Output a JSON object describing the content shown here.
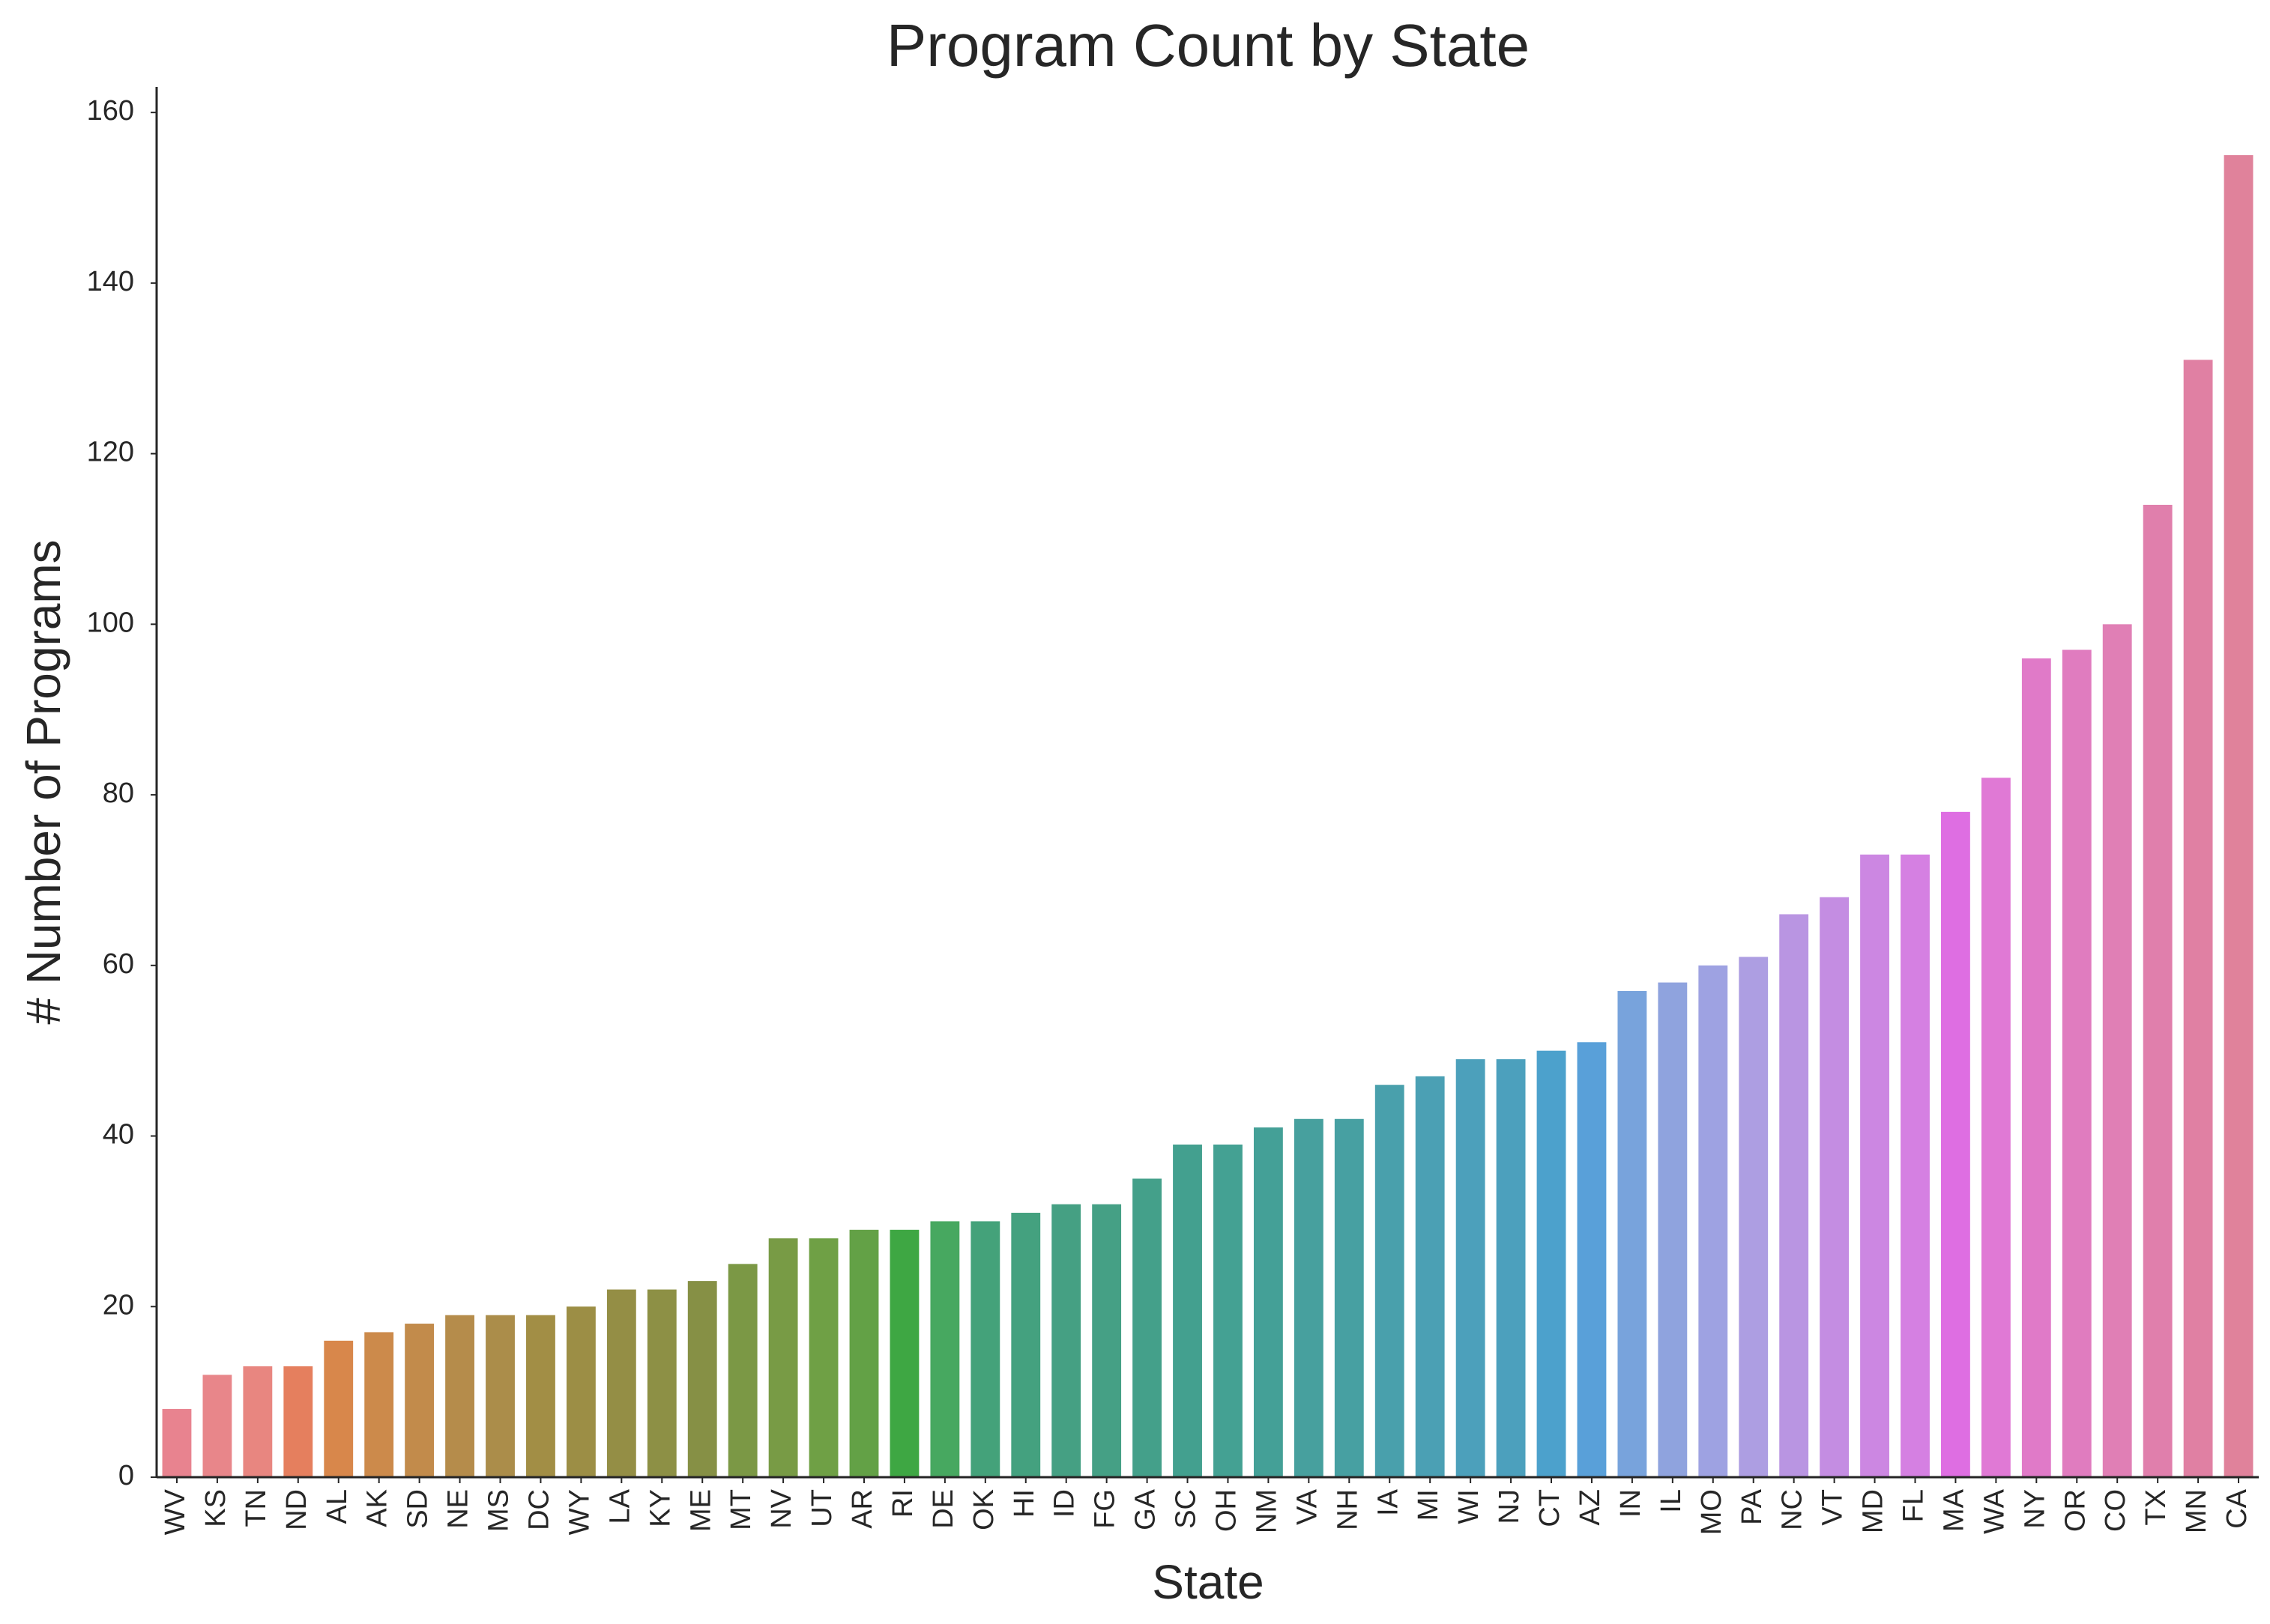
{
  "chart_data": {
    "type": "bar",
    "title": "Program Count by State",
    "xlabel": "State",
    "ylabel": "# Number of Programs",
    "ylim": [
      0,
      163
    ],
    "yticks": [
      0,
      20,
      40,
      60,
      80,
      100,
      120,
      140,
      160
    ],
    "grid": false,
    "categories": [
      "WV",
      "KS",
      "TN",
      "ND",
      "AL",
      "AK",
      "SD",
      "NE",
      "MS",
      "DC",
      "WY",
      "LA",
      "KY",
      "ME",
      "MT",
      "NV",
      "UT",
      "AR",
      "RI",
      "DE",
      "OK",
      "HI",
      "ID",
      "FG",
      "GA",
      "SC",
      "OH",
      "NM",
      "VA",
      "NH",
      "IA",
      "MI",
      "WI",
      "NJ",
      "CT",
      "AZ",
      "IN",
      "IL",
      "MO",
      "PA",
      "NC",
      "VT",
      "MD",
      "FL",
      "MA",
      "WA",
      "NY",
      "OR",
      "CO",
      "TX",
      "MN",
      "CA"
    ],
    "values": [
      8,
      12,
      13,
      13,
      16,
      17,
      18,
      19,
      19,
      19,
      20,
      22,
      22,
      23,
      25,
      28,
      28,
      29,
      29,
      30,
      30,
      31,
      32,
      32,
      35,
      39,
      39,
      41,
      42,
      42,
      46,
      47,
      49,
      49,
      50,
      51,
      57,
      58,
      60,
      61,
      66,
      68,
      73,
      73,
      78,
      82,
      96,
      97,
      100,
      114,
      131,
      155
    ],
    "colors": [
      "#e8838f",
      "#e8868a",
      "#e88680",
      "#e57f5e",
      "#d8874b",
      "#cc8a4b",
      "#c28b4b",
      "#b58c4b",
      "#ab8d4a",
      "#a28e45",
      "#9c8e45",
      "#948e45",
      "#8d9045",
      "#869045",
      "#7b9845",
      "#789b45",
      "#6fa045",
      "#63a146",
      "#3ea743",
      "#47a860",
      "#44a27a",
      "#44a17f",
      "#45a083",
      "#45a085",
      "#44a08a",
      "#43a08f",
      "#44a193",
      "#44a097",
      "#47a09e",
      "#47a0a2",
      "#49a0ac",
      "#4ba0b4",
      "#4ca0bb",
      "#4ca0bd",
      "#4ca1cc",
      "#59a0d9",
      "#78a3dc",
      "#8fa3de",
      "#9ea2e2",
      "#ad9ee2",
      "#b995e2",
      "#c48de2",
      "#cc87e2",
      "#d580e2",
      "#de6ee2",
      "#e079d5",
      "#e07ac8",
      "#e07cbf",
      "#e07fb5",
      "#e07fac",
      "#e080a3",
      "#e0829b"
    ]
  }
}
